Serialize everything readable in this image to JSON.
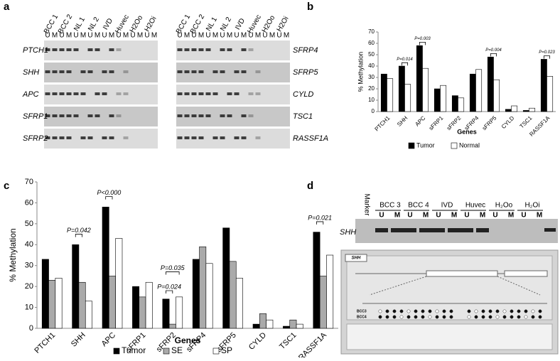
{
  "panel_labels": [
    "a",
    "b",
    "c",
    "d"
  ],
  "gel_a": {
    "lanes": [
      "BCC 1",
      "BCC 2",
      "NL 1",
      "NL 2",
      "IVD",
      "Huvec",
      "H2Oo",
      "H2Oi"
    ],
    "sub": [
      "U",
      "M"
    ],
    "genes_left": [
      "PTCH1",
      "SHH",
      "APC",
      "SFRP1",
      "SFRP2"
    ],
    "genes_right": [
      "SFRP4",
      "SFRP5",
      "CYLD",
      "TSC1",
      "RASSF1A"
    ]
  },
  "chart_data": [
    {
      "type": "bar",
      "y_label": "% Methylation",
      "x_label": "Genes",
      "categories": [
        "PTCH1",
        "SHH",
        "APC",
        "sFRP1",
        "sFRP2",
        "sFRP4",
        "sFRP5",
        "CYLD",
        "TSC1",
        "RASSF1A"
      ],
      "series": [
        {
          "name": "Tumor",
          "color": "#000000",
          "values": [
            33,
            40,
            58,
            20,
            14,
            33,
            48,
            2,
            1,
            46
          ]
        },
        {
          "name": "Normal",
          "color": "#ffffff",
          "values": [
            29,
            24,
            38,
            23,
            12,
            37,
            28,
            5,
            3,
            31
          ]
        }
      ],
      "ylim": [
        0,
        70
      ],
      "yticks": [
        0,
        10,
        20,
        30,
        40,
        50,
        60,
        70
      ],
      "annotations": [
        "P=0.014",
        "P=0.003",
        "P=0.004",
        "P=0.023"
      ]
    },
    {
      "type": "bar",
      "y_label": "% Methylation",
      "x_label": "Genes",
      "categories": [
        "PTCH1",
        "SHH",
        "APC",
        "sFRP1",
        "sFRP2",
        "sFRP4",
        "sFRP5",
        "CYLD",
        "TSC1",
        "RASSF1A"
      ],
      "series": [
        {
          "name": "Tumor",
          "color": "#000000",
          "values": [
            33,
            40,
            58,
            20,
            14,
            33,
            48,
            2,
            1,
            46
          ]
        },
        {
          "name": "SE",
          "color": "#aaaaaa",
          "values": [
            23,
            22,
            25,
            15,
            2,
            39,
            32,
            7,
            4,
            25
          ]
        },
        {
          "name": "SP",
          "color": "#ffffff",
          "values": [
            24,
            13,
            43,
            22,
            15,
            31,
            24,
            4,
            2,
            35
          ]
        }
      ],
      "ylim": [
        0,
        70
      ],
      "yticks": [
        0,
        10,
        20,
        30,
        40,
        50,
        60,
        70
      ],
      "annotations": [
        "P=0.042",
        "P<0.000",
        "P=0.035",
        "P=0.024",
        "P=0.021"
      ]
    }
  ],
  "gel_d": {
    "marker": "Marker",
    "lanes": [
      "BCC 3",
      "BCC 4",
      "IVD",
      "Huvec",
      "H₂Oo",
      "H₂Oi"
    ],
    "sub": [
      "U",
      "M"
    ],
    "gene": "SHH",
    "diagram": {
      "title": "SHH",
      "samples": [
        "BCC3",
        "BCC4"
      ]
    }
  }
}
